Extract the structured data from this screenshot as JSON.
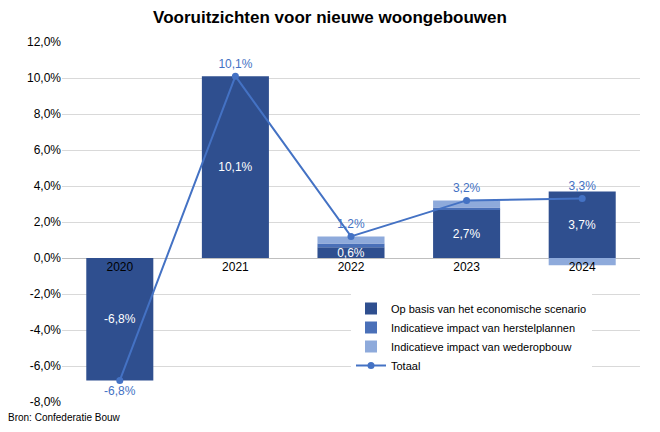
{
  "chart_data": {
    "type": "bar",
    "title": "Vooruitzichten voor nieuwe woongebouwen",
    "source": "Bron: Confederatie Bouw",
    "categories": [
      "2020",
      "2021",
      "2022",
      "2023",
      "2024"
    ],
    "stacked": true,
    "series": [
      {
        "name": "Op basis van het economische scenario",
        "type": "bar",
        "color": "#2f4f8f",
        "values": [
          -6.8,
          10.1,
          0.6,
          2.7,
          3.7
        ],
        "data_labels": true,
        "value_labels": [
          "-6,8%",
          "10,1%",
          "0,6%",
          "2,7%",
          "3,7%"
        ]
      },
      {
        "name": "Indicatieve impact van herstelplannen",
        "type": "bar",
        "color": "#4a70b8",
        "values": [
          0,
          0,
          0.2,
          0.1,
          0
        ]
      },
      {
        "name": "Indicatieve impact van wederopbouw",
        "type": "bar",
        "color": "#8eaadb",
        "values": [
          0,
          0,
          0.4,
          0.4,
          -0.4
        ]
      },
      {
        "name": "Totaal",
        "type": "line",
        "color": "#4472c4",
        "marker": "circle",
        "values": [
          -6.8,
          10.1,
          1.2,
          3.2,
          3.3
        ],
        "data_labels": true,
        "value_labels": [
          "-6,8%",
          "10,1%",
          "1,2%",
          "3,2%",
          "3,3%"
        ]
      }
    ],
    "ylim": [
      -8,
      12
    ],
    "yticks": [
      {
        "value": -8,
        "label": "-8,0%"
      },
      {
        "value": -6,
        "label": "-6,0%"
      },
      {
        "value": -4,
        "label": "-4,0%"
      },
      {
        "value": -2,
        "label": "-2,0%"
      },
      {
        "value": 0,
        "label": "0,0%"
      },
      {
        "value": 2,
        "label": "2,0%"
      },
      {
        "value": 4,
        "label": "4,0%"
      },
      {
        "value": 6,
        "label": "6,0%"
      },
      {
        "value": 8,
        "label": "8,0%"
      },
      {
        "value": 10,
        "label": "10,0%"
      },
      {
        "value": 12,
        "label": "12,0%"
      }
    ],
    "grid": true,
    "legend": "lower right"
  }
}
